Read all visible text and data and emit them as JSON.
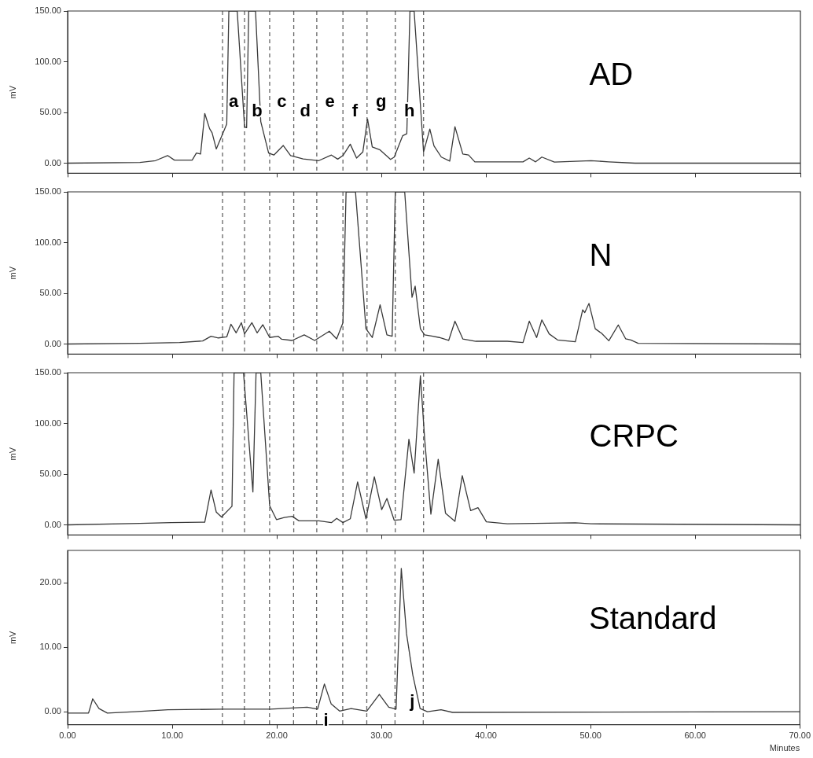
{
  "chart_data": [
    {
      "type": "line",
      "title": "AD",
      "ylabel": "mV",
      "marker": "none",
      "tick_labels": "y",
      "xlim": [
        0,
        70
      ],
      "ylim": [
        -10,
        150
      ],
      "xticks": [
        0,
        10,
        20,
        30,
        40,
        50,
        60,
        70
      ],
      "yticks": [
        {
          "value": 0,
          "label": "0.00"
        },
        {
          "value": 50,
          "label": "50.00"
        },
        {
          "value": 100,
          "label": "100.00"
        },
        {
          "value": 150,
          "label": "150.00"
        }
      ],
      "series": [
        {
          "color": "#3a3a3a",
          "x": [
            0,
            6.9,
            8.4,
            9.55,
            10.2,
            11.9,
            12.3,
            12.7,
            13.1,
            13.56,
            13.8,
            14.2,
            15.2,
            15.4,
            16.2,
            16.9,
            17.1,
            17.3,
            17.95,
            18.45,
            19.2,
            19.7,
            20.6,
            21.3,
            22.5,
            24.0,
            25.2,
            25.8,
            26.3,
            27.0,
            27.6,
            28.2,
            28.65,
            29.1,
            29.85,
            30.85,
            31.2,
            32.0,
            32.4,
            32.7,
            33.1,
            34.0,
            34.6,
            35.0,
            35.7,
            36.5,
            37.0,
            37.75,
            38.3,
            38.9,
            43.5,
            44.1,
            44.7,
            45.3,
            46.5,
            50.0,
            51.7,
            54.2,
            70
          ],
          "values": [
            0,
            0.7,
            2.5,
            7.5,
            3,
            3,
            10,
            9,
            49,
            34,
            30,
            14,
            38.5,
            150,
            150,
            36,
            35,
            150,
            150,
            41,
            10,
            8,
            17.4,
            7.5,
            4.2,
            2.5,
            8,
            4,
            7.5,
            18.7,
            5,
            11,
            43.5,
            16,
            13,
            3.7,
            6,
            27,
            29,
            150,
            150,
            11,
            33.6,
            17,
            6,
            2,
            36,
            9,
            8,
            1.3,
            1.3,
            5,
            1.3,
            6,
            1,
            2.5,
            1.3,
            0,
            0
          ]
        }
      ],
      "ref_lines": [
        {
          "axis": "x",
          "value": 14.8,
          "color": "#666666",
          "line_style": "dashed"
        },
        {
          "axis": "x",
          "value": 16.9,
          "color": "#666666",
          "line_style": "dashed"
        },
        {
          "axis": "x",
          "value": 19.3,
          "color": "#666666",
          "line_style": "dashed"
        },
        {
          "axis": "x",
          "value": 21.6,
          "color": "#666666",
          "line_style": "dashed"
        },
        {
          "axis": "x",
          "value": 23.8,
          "color": "#666666",
          "line_style": "dashed"
        },
        {
          "axis": "x",
          "value": 26.3,
          "color": "#666666",
          "line_style": "dashed"
        },
        {
          "axis": "x",
          "value": 28.6,
          "color": "#666666",
          "line_style": "dashed"
        },
        {
          "axis": "x",
          "value": 31.3,
          "color": "#666666",
          "line_style": "dashed"
        },
        {
          "axis": "x",
          "value": 34.0,
          "color": "#666666",
          "line_style": "dashed"
        }
      ],
      "annotations": [
        "a",
        "b",
        "c",
        "d",
        "e",
        "f",
        "g",
        "h"
      ]
    },
    {
      "type": "line",
      "title": "N",
      "ylabel": "mV",
      "marker": "none",
      "tick_labels": "y",
      "xlim": [
        0,
        70
      ],
      "ylim": [
        -10,
        150
      ],
      "xticks": [
        0,
        10,
        20,
        30,
        40,
        50,
        60,
        70
      ],
      "yticks": [
        {
          "value": 0,
          "label": "0.00"
        },
        {
          "value": 50,
          "label": "50.00"
        },
        {
          "value": 100,
          "label": "100.00"
        },
        {
          "value": 150,
          "label": "150.00"
        }
      ],
      "series": [
        {
          "color": "#3a3a3a",
          "x": [
            0,
            6.9,
            10.7,
            12.9,
            13.7,
            14.4,
            15.2,
            15.6,
            16.1,
            16.6,
            16.9,
            17.6,
            18.1,
            18.65,
            19.3,
            20.1,
            20.45,
            21.45,
            22.6,
            23.6,
            25.0,
            25.7,
            26.3,
            26.6,
            27.5,
            28.5,
            29.1,
            29.85,
            30.5,
            31.0,
            31.3,
            32.2,
            32.9,
            33.2,
            33.7,
            34.1,
            34.9,
            35.5,
            36.4,
            37.0,
            37.75,
            39.0,
            42.0,
            43.5,
            44.1,
            44.8,
            45.3,
            46.0,
            46.8,
            48.5,
            49.2,
            49.4,
            49.8,
            50.4,
            51.0,
            51.7,
            52.6,
            53.3,
            53.8,
            54.5,
            70
          ],
          "values": [
            0,
            0.7,
            1.5,
            3,
            7.7,
            6,
            7,
            19.5,
            11,
            21,
            10,
            21,
            11,
            19,
            6.4,
            7.7,
            4.7,
            3.5,
            9,
            3.5,
            12.6,
            5,
            21,
            150,
            150,
            15,
            6.4,
            38.6,
            9,
            7.7,
            150,
            150,
            46,
            57,
            15,
            9,
            7.7,
            6.4,
            3.5,
            22.5,
            5,
            2.7,
            2.7,
            1.5,
            22.5,
            6.4,
            23.8,
            10,
            4,
            2.2,
            33.7,
            31,
            40,
            15,
            10.6,
            3.2,
            18.8,
            5.2,
            4,
            0.7,
            0
          ]
        }
      ],
      "ref_lines": [
        {
          "axis": "x",
          "value": 14.8,
          "color": "#666666",
          "line_style": "dashed"
        },
        {
          "axis": "x",
          "value": 16.9,
          "color": "#666666",
          "line_style": "dashed"
        },
        {
          "axis": "x",
          "value": 19.3,
          "color": "#666666",
          "line_style": "dashed"
        },
        {
          "axis": "x",
          "value": 21.6,
          "color": "#666666",
          "line_style": "dashed"
        },
        {
          "axis": "x",
          "value": 23.8,
          "color": "#666666",
          "line_style": "dashed"
        },
        {
          "axis": "x",
          "value": 26.3,
          "color": "#666666",
          "line_style": "dashed"
        },
        {
          "axis": "x",
          "value": 28.6,
          "color": "#666666",
          "line_style": "dashed"
        },
        {
          "axis": "x",
          "value": 31.3,
          "color": "#666666",
          "line_style": "dashed"
        },
        {
          "axis": "x",
          "value": 34.0,
          "color": "#666666",
          "line_style": "dashed"
        }
      ]
    },
    {
      "type": "line",
      "title": "CRPC",
      "ylabel": "mV",
      "marker": "none",
      "tick_labels": "y",
      "xlim": [
        0,
        70
      ],
      "ylim": [
        -10,
        150
      ],
      "xticks": [
        0,
        10,
        20,
        30,
        40,
        50,
        60,
        70
      ],
      "yticks": [
        {
          "value": 0,
          "label": "0.00"
        },
        {
          "value": 50,
          "label": "50.00"
        },
        {
          "value": 100,
          "label": "100.00"
        },
        {
          "value": 150,
          "label": "150.00"
        }
      ],
      "series": [
        {
          "color": "#3a3a3a",
          "x": [
            0,
            6.9,
            9.9,
            13.1,
            13.7,
            14.2,
            14.7,
            15.7,
            15.9,
            16.8,
            17.7,
            18.0,
            18.45,
            19.3,
            19.95,
            20.7,
            21.45,
            22.1,
            24.0,
            25.2,
            25.7,
            26.3,
            27.0,
            27.7,
            28.5,
            29.3,
            30.0,
            30.5,
            31.2,
            31.85,
            32.6,
            33.1,
            33.7,
            34.1,
            34.7,
            35.4,
            36.1,
            37.0,
            37.7,
            38.5,
            39.2,
            40.0,
            42.0,
            48.5,
            50.0,
            70
          ],
          "values": [
            0,
            1.5,
            2.2,
            2.7,
            34.4,
            12.6,
            7.7,
            18.3,
            150,
            150,
            32.4,
            150,
            150,
            18.8,
            5.2,
            7.2,
            8.4,
            4,
            4,
            2.2,
            6.4,
            2.2,
            6,
            42.3,
            6,
            47.3,
            15,
            26,
            4.5,
            5.2,
            84.4,
            51,
            147,
            85.6,
            10.6,
            64.6,
            11.4,
            3.5,
            48.5,
            14,
            17,
            3,
            1,
            2,
            1,
            0
          ]
        }
      ],
      "ref_lines": [
        {
          "axis": "x",
          "value": 14.8,
          "color": "#666666",
          "line_style": "dashed"
        },
        {
          "axis": "x",
          "value": 16.9,
          "color": "#666666",
          "line_style": "dashed"
        },
        {
          "axis": "x",
          "value": 19.3,
          "color": "#666666",
          "line_style": "dashed"
        },
        {
          "axis": "x",
          "value": 21.6,
          "color": "#666666",
          "line_style": "dashed"
        },
        {
          "axis": "x",
          "value": 23.8,
          "color": "#666666",
          "line_style": "dashed"
        },
        {
          "axis": "x",
          "value": 26.3,
          "color": "#666666",
          "line_style": "dashed"
        },
        {
          "axis": "x",
          "value": 28.6,
          "color": "#666666",
          "line_style": "dashed"
        },
        {
          "axis": "x",
          "value": 31.3,
          "color": "#666666",
          "line_style": "dashed"
        },
        {
          "axis": "x",
          "value": 34.0,
          "color": "#666666",
          "line_style": "dashed"
        }
      ]
    },
    {
      "type": "line",
      "title": "Standard",
      "xlabel": "Minutes",
      "ylabel": "mV",
      "marker": "none",
      "xlim": [
        0,
        70
      ],
      "ylim": [
        -2,
        25
      ],
      "xticks": [
        {
          "value": 0,
          "label": "0.00"
        },
        {
          "value": 10,
          "label": "10.00"
        },
        {
          "value": 20,
          "label": "20.00"
        },
        {
          "value": 30,
          "label": "30.00"
        },
        {
          "value": 40,
          "label": "40.00"
        },
        {
          "value": 50,
          "label": "50.00"
        },
        {
          "value": 60,
          "label": "60.00"
        },
        {
          "value": 70,
          "label": "70.00"
        }
      ],
      "yticks": [
        {
          "value": 0,
          "label": "0.00"
        },
        {
          "value": 10,
          "label": "10.00"
        },
        {
          "value": 20,
          "label": "20.00"
        }
      ],
      "series": [
        {
          "color": "#3a3a3a",
          "x": [
            0,
            2.0,
            2.4,
            3.0,
            3.8,
            6.4,
            9.6,
            14.8,
            19.4,
            22.9,
            23.9,
            24.55,
            25.2,
            26.0,
            27.1,
            28.6,
            29.8,
            30.7,
            31.4,
            31.9,
            32.4,
            33.0,
            33.7,
            34.4,
            35.7,
            36.8,
            70
          ],
          "values": [
            -0.2,
            -0.2,
            2.0,
            0.5,
            -0.2,
            0,
            0.3,
            0.4,
            0.4,
            0.7,
            0.4,
            4.3,
            1.2,
            0.1,
            0.5,
            0.1,
            2.7,
            0.7,
            0.4,
            22.2,
            12.1,
            5.7,
            0.5,
            0,
            0.3,
            -0.1,
            0
          ]
        }
      ],
      "ref_lines": [
        {
          "axis": "x",
          "value": 14.8,
          "color": "#666666",
          "line_style": "dashed"
        },
        {
          "axis": "x",
          "value": 16.9,
          "color": "#666666",
          "line_style": "dashed"
        },
        {
          "axis": "x",
          "value": 19.3,
          "color": "#666666",
          "line_style": "dashed"
        },
        {
          "axis": "x",
          "value": 21.6,
          "color": "#666666",
          "line_style": "dashed"
        },
        {
          "axis": "x",
          "value": 23.8,
          "color": "#666666",
          "line_style": "dashed"
        },
        {
          "axis": "x",
          "value": 26.3,
          "color": "#666666",
          "line_style": "dashed"
        },
        {
          "axis": "x",
          "value": 28.6,
          "color": "#666666",
          "line_style": "dashed"
        },
        {
          "axis": "x",
          "value": 31.3,
          "color": "#666666",
          "line_style": "dashed"
        },
        {
          "axis": "x",
          "value": 34.0,
          "color": "#666666",
          "line_style": "dashed"
        }
      ],
      "annotations": [
        "i",
        "j"
      ]
    }
  ]
}
